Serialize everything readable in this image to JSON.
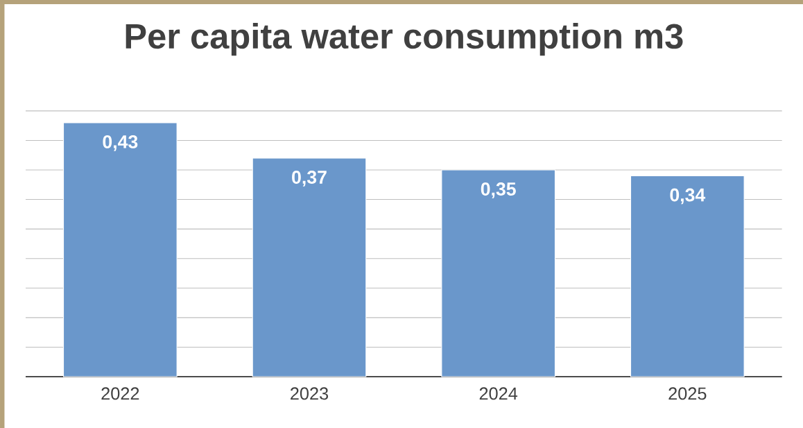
{
  "chart_data": {
    "type": "bar",
    "title": "Per capita water consumption m3",
    "categories": [
      "2022",
      "2023",
      "2024",
      "2025"
    ],
    "values": [
      0.43,
      0.37,
      0.35,
      0.34
    ],
    "value_labels": [
      "0,43",
      "0,37",
      "0,35",
      "0,34"
    ],
    "color": "#6a97cb",
    "tick_labels": "x",
    "grid": "y"
  }
}
